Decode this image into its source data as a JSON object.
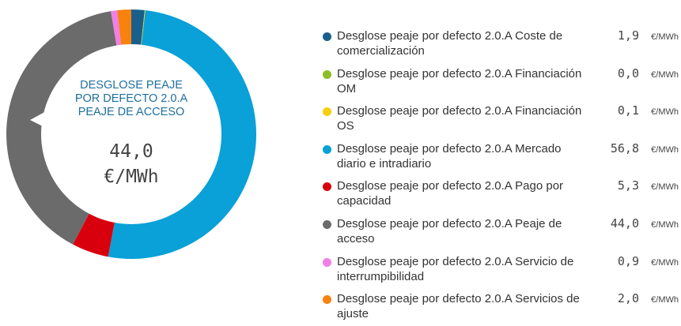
{
  "chart_data": {
    "type": "donut",
    "center_title": "DESGLOSE PEAJE POR DEFECTO 2.0.A PEAJE DE ACCESO",
    "unit": "€/MWh",
    "series": [
      {
        "name": "Desglose peaje por defecto 2.0.A Coste de comercialización",
        "color": "#1a5f8c",
        "values": [
          1.9
        ],
        "value_labels": [
          "1,9"
        ]
      },
      {
        "name": "Desglose peaje por defecto 2.0.A Financiación OM",
        "color": "#8cbf26",
        "values": [
          0.0
        ],
        "value_labels": [
          "0,0"
        ]
      },
      {
        "name": "Desglose peaje por defecto 2.0.A Financiación OS",
        "color": "#f5cf0c",
        "values": [
          0.1
        ],
        "value_labels": [
          "0,1"
        ]
      },
      {
        "name": "Desglose peaje por defecto 2.0.A Mercado diario e intradiario",
        "color": "#0aa0d8",
        "values": [
          56.8
        ],
        "value_labels": [
          "56,8"
        ]
      },
      {
        "name": "Desglose peaje por defecto 2.0.A Pago por capacidad",
        "color": "#d9000d",
        "values": [
          5.3
        ],
        "value_labels": [
          "5,3"
        ]
      },
      {
        "name": "Desglose peaje por defecto 2.0.A Peaje de acceso",
        "color": "#6b6b6b",
        "values": [
          44.0
        ],
        "value_labels": [
          "44,0"
        ]
      },
      {
        "name": "Desglose peaje por defecto 2.0.A Servicio de interrumpibilidad",
        "color": "#f27ee6",
        "values": [
          0.9
        ],
        "value_labels": [
          "0,9"
        ]
      },
      {
        "name": "Desglose peaje por defecto 2.0.A Servicios de ajuste",
        "color": "#f7820e",
        "values": [
          2.0
        ],
        "value_labels": [
          "2,0"
        ]
      }
    ],
    "highlight": 5
  }
}
